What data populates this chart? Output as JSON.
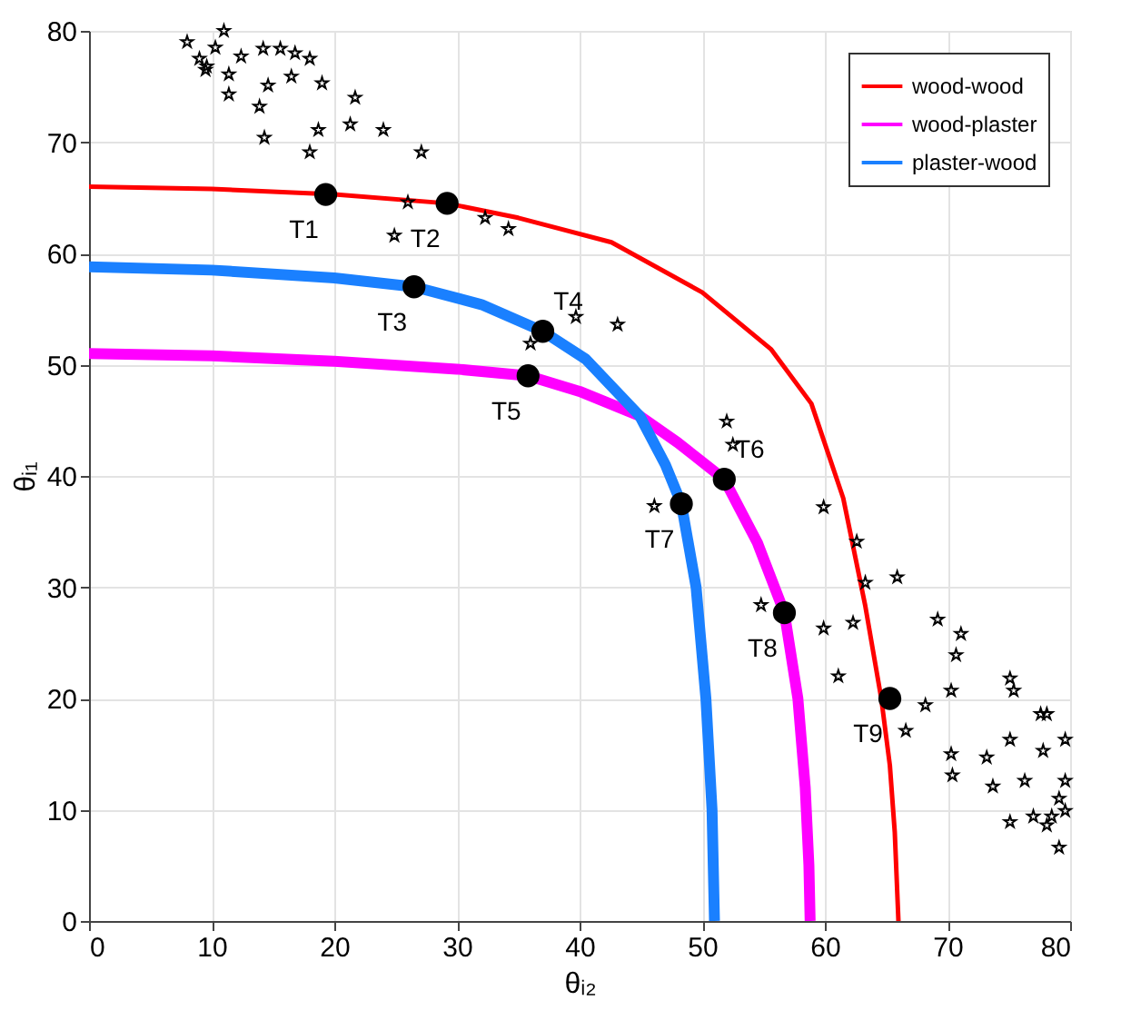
{
  "chart_data": {
    "type": "line",
    "xlabel": "θᵢ₂",
    "ylabel": "θᵢ₁",
    "xlim": [
      0,
      80
    ],
    "ylim": [
      0,
      80
    ],
    "xticks": [
      0,
      10,
      20,
      30,
      40,
      50,
      60,
      70,
      80
    ],
    "yticks": [
      0,
      10,
      20,
      30,
      40,
      50,
      60,
      70,
      80
    ],
    "grid": true,
    "legend": "top right",
    "line_style": "solid",
    "series": [
      {
        "name": "wood-wood",
        "color": "#ff0000",
        "marker": "none",
        "x": [
          0,
          10,
          20,
          29.2,
          35,
          42.6,
          50,
          55.6,
          58.9,
          61.5,
          63.3,
          64.6,
          65.3,
          65.7,
          66
        ],
        "values": [
          66,
          65.8,
          65.3,
          64.5,
          63.2,
          61,
          56.5,
          51.4,
          46.5,
          38,
          28.3,
          20,
          14,
          8,
          0
        ]
      },
      {
        "name": "wood-plaster",
        "color": "#ff00ff",
        "marker": "none",
        "x": [
          0,
          10,
          20,
          30,
          35.8,
          40,
          44.9,
          48,
          51.8,
          54.5,
          56.7,
          57.8,
          58.4,
          58.7,
          58.8
        ],
        "values": [
          51,
          50.8,
          50.3,
          49.6,
          49,
          47.6,
          45.4,
          43,
          39.7,
          34,
          27.7,
          20,
          12,
          5,
          0
        ]
      },
      {
        "name": "plaster-wood",
        "color": "#1a80ff",
        "marker": "none",
        "x": [
          0,
          10,
          20,
          26.5,
          32,
          37,
          40.5,
          44.9,
          47,
          48.3,
          49.5,
          50.3,
          50.8,
          51
        ],
        "values": [
          58.8,
          58.5,
          57.8,
          57,
          55.4,
          53,
          50.5,
          45.4,
          41,
          37.5,
          30,
          20,
          10,
          0
        ]
      },
      {
        "color": "#000000",
        "type": "scatter",
        "marker": "star",
        "x": [
          8,
          9,
          9.5
        ],
        "values": [
          79,
          77.5,
          76.5
        ]
      },
      {
        "color": "#000000",
        "type": "scatter",
        "marker": "star",
        "x": [
          11,
          10.3,
          9.6
        ],
        "values": [
          80,
          78.5,
          76.8
        ]
      },
      {
        "color": "#000000",
        "type": "scatter",
        "marker": "star",
        "x": [
          11.4,
          11.4,
          12.4,
          14.2,
          15.6,
          16.8,
          18
        ],
        "values": [
          74.3,
          76.1,
          77.7,
          78.4,
          78.4,
          78,
          77.5
        ]
      },
      {
        "color": "#000000",
        "type": "scatter",
        "marker": "star",
        "x": [
          14.3,
          13.9,
          14.6,
          16.5,
          19,
          21.7
        ],
        "values": [
          70.4,
          73.2,
          75.1,
          75.9,
          75.3,
          74
        ]
      },
      {
        "color": "#000000",
        "type": "scatter",
        "marker": "star",
        "x": [
          18,
          18.7,
          21.3,
          24,
          27.1
        ],
        "values": [
          69.1,
          71.1,
          71.6,
          71.1,
          69.1
        ]
      },
      {
        "color": "#000000",
        "type": "scatter",
        "marker": "star",
        "x": [
          24.9,
          26,
          32.3,
          34.2
        ],
        "values": [
          61.6,
          64.6,
          63.2,
          62.2
        ]
      },
      {
        "color": "#000000",
        "type": "scatter",
        "marker": "star",
        "x": [
          36,
          39.7,
          43.1
        ],
        "values": [
          51.9,
          54.3,
          53.6
        ]
      },
      {
        "color": "#000000",
        "type": "scatter",
        "marker": "star",
        "x": [
          46.1,
          52.5,
          52
        ],
        "values": [
          37.3,
          42.8,
          44.9
        ]
      },
      {
        "color": "#000000",
        "type": "scatter",
        "marker": "star",
        "x": [
          54.8,
          59.9,
          62.3,
          63.3,
          62.6,
          59.9
        ],
        "values": [
          28.4,
          26.3,
          26.8,
          30.4,
          34.1,
          37.2
        ]
      },
      {
        "color": "#000000",
        "type": "scatter",
        "marker": "star",
        "x": [
          61.1,
          68.2,
          70.3,
          70.7,
          69.2,
          65.9
        ],
        "values": [
          22,
          19.4,
          20.7,
          23.9,
          27.1,
          30.9
        ]
      },
      {
        "color": "#000000",
        "type": "scatter",
        "marker": "star",
        "x": [
          66.6,
          70.3,
          73.2,
          75.1,
          75.4,
          71.1
        ],
        "values": [
          17.1,
          15,
          14.7,
          16.3,
          20.7,
          25.8
        ]
      },
      {
        "color": "#000000",
        "type": "scatter",
        "marker": "star",
        "x": [
          70.4,
          73.7,
          76.3,
          77.8,
          77.6,
          75.1
        ],
        "values": [
          13.1,
          12.1,
          12.6,
          15.3,
          18.6,
          21.8
        ]
      },
      {
        "color": "#000000",
        "type": "scatter",
        "marker": "star",
        "x": [
          75.1,
          77,
          79.1,
          79.6,
          79.6,
          78.1
        ],
        "values": [
          8.9,
          9.4,
          11,
          12.6,
          16.3,
          18.6
        ]
      },
      {
        "color": "#000000",
        "type": "scatter",
        "marker": "star",
        "x": [
          79.1,
          78.1,
          78.5,
          79.6
        ],
        "values": [
          6.6,
          8.6,
          9.4,
          9.9
        ]
      },
      {
        "color": "#000000",
        "type": "scatter",
        "marker": "circle",
        "x": [
          19.3,
          29.2,
          26.5,
          37,
          35.8,
          51.8,
          48.3,
          56.7,
          65.3
        ],
        "values": [
          65.3,
          64.5,
          57,
          53,
          49,
          39.7,
          37.5,
          27.7,
          20
        ]
      }
    ],
    "annotations": [
      {
        "text": "T1",
        "x": 19.3,
        "y": 65.3
      },
      {
        "text": "T2",
        "x": 29.2,
        "y": 64.5
      },
      {
        "text": "T3",
        "x": 26.5,
        "y": 57
      },
      {
        "text": "T4",
        "x": 37,
        "y": 53
      },
      {
        "text": "T5",
        "x": 35.8,
        "y": 49
      },
      {
        "text": "T6",
        "x": 51.8,
        "y": 39.7
      },
      {
        "text": "T7",
        "x": 48.3,
        "y": 37.5
      },
      {
        "text": "T8",
        "x": 56.7,
        "y": 27.7
      },
      {
        "text": "T9",
        "x": 65.3,
        "y": 20
      }
    ]
  }
}
